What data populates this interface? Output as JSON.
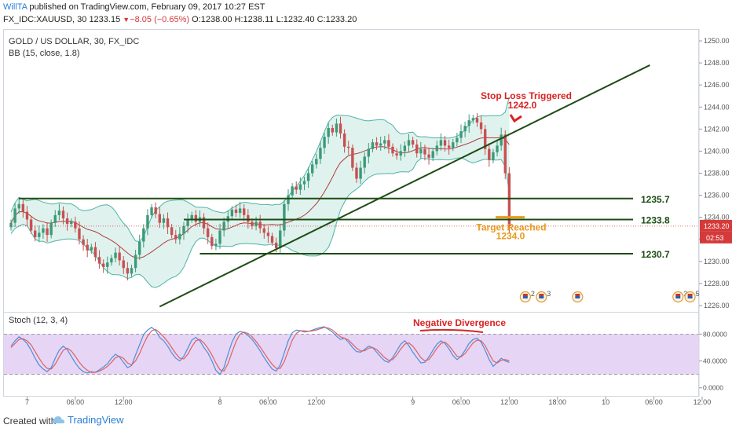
{
  "header": {
    "author": "WillTA",
    "published_text": "published on TradingView.com, February 09, 2017 10:27 EST",
    "symbol": "FX_IDC:XAUUSD, 30",
    "last": "1233.15",
    "change": "−8.05 (−0.65%)",
    "ohlc": {
      "o_label": "O:",
      "o": "1238.00",
      "h_label": "H:",
      "h": "1238.11",
      "l_label": "L:",
      "l": "1232.40",
      "c_label": "C:",
      "c": "1233.20"
    }
  },
  "legend": {
    "main": "GOLD / US DOLLAR, 30, FX_IDC",
    "bb": "BB (15, close, 1.8)",
    "stoch": "Stoch (12, 3, 4)"
  },
  "colors": {
    "up": "#3c9a78",
    "down": "#c85050",
    "bb_band": "#4fb3a6",
    "bb_fill": "#dff2ee",
    "bb_basis": "#b03c3c",
    "level_line": "#1e4d14",
    "stop_text": "#d92222",
    "target_text": "#e89a1c",
    "stoch_k": "#4a90d9",
    "stoch_d": "#e06060",
    "stoch_bg": "#e6d5f5",
    "price_tag": "#d43a3a"
  },
  "chart_data": [
    {
      "type": "line",
      "title": "GOLD / US DOLLAR, 30, FX_IDC",
      "indicator": "BB (15, close, 1.8)",
      "ylim": [
        1225.5,
        1251
      ],
      "y_ticks": [
        "1250.00",
        "1248.00",
        "1246.00",
        "1244.00",
        "1242.00",
        "1240.00",
        "1238.00",
        "1236.00",
        "1234.00",
        "1232.00",
        "1230.00",
        "1228.00",
        "1226.00"
      ],
      "x_ticks": [
        {
          "label": "7",
          "bar": 4
        },
        {
          "label": "06:00",
          "bar": 16
        },
        {
          "label": "12:00",
          "bar": 28
        },
        {
          "label": "8",
          "bar": 52
        },
        {
          "label": "06:00",
          "bar": 64
        },
        {
          "label": "12:00",
          "bar": 76
        },
        {
          "label": "9",
          "bar": 100
        },
        {
          "label": "06:00",
          "bar": 112
        },
        {
          "label": "12:00",
          "bar": 124
        },
        {
          "label": "18:00",
          "bar": 136
        },
        {
          "label": "10",
          "bar": 148
        },
        {
          "label": "06:00",
          "bar": 160
        },
        {
          "label": "12:00",
          "bar": 172
        }
      ],
      "closes": [
        1233.5,
        1234.8,
        1235.2,
        1234.5,
        1233.8,
        1232.8,
        1232.2,
        1232.6,
        1233.0,
        1232.4,
        1233.5,
        1234.2,
        1234.6,
        1233.9,
        1233.4,
        1233.6,
        1233.0,
        1232.0,
        1231.5,
        1231.0,
        1231.3,
        1230.4,
        1229.8,
        1229.5,
        1229.9,
        1230.3,
        1230.8,
        1230.1,
        1229.4,
        1228.9,
        1229.4,
        1230.6,
        1231.8,
        1233.0,
        1234.2,
        1234.9,
        1234.3,
        1233.5,
        1233.9,
        1233.1,
        1232.4,
        1232.0,
        1232.5,
        1233.2,
        1233.8,
        1234.2,
        1233.6,
        1234.0,
        1233.0,
        1232.2,
        1231.4,
        1231.6,
        1232.8,
        1233.6,
        1234.1,
        1234.7,
        1234.4,
        1234.8,
        1234.2,
        1233.6,
        1233.2,
        1233.6,
        1233.0,
        1232.6,
        1232.3,
        1231.7,
        1231.2,
        1232.8,
        1235.2,
        1236.0,
        1236.8,
        1236.5,
        1237.0,
        1237.3,
        1238.0,
        1238.8,
        1239.3,
        1240.3,
        1241.3,
        1242.1,
        1241.7,
        1242.5,
        1241.6,
        1240.4,
        1240.3,
        1238.5,
        1237.5,
        1238.5,
        1239.5,
        1240.2,
        1240.8,
        1240.5,
        1240.7,
        1241.0,
        1240.4,
        1239.8,
        1239.6,
        1240.0,
        1240.5,
        1241.0,
        1240.6,
        1239.8,
        1240.2,
        1239.7,
        1239.4,
        1240.0,
        1240.5,
        1241.0,
        1240.5,
        1240.3,
        1240.8,
        1241.2,
        1241.8,
        1242.3,
        1242.8,
        1243.0,
        1242.6,
        1242.0,
        1240.2,
        1239.2,
        1239.9,
        1240.5,
        1241.5,
        1238.0,
        1233.2
      ],
      "bb_period": 15,
      "bb_mult": 1.8,
      "levels": [
        {
          "label": "1235.7",
          "value": 1235.7,
          "bar_from": 2
        },
        {
          "label": "1233.8",
          "value": 1233.8,
          "bar_from": 43
        },
        {
          "label": "1230.7",
          "value": 1230.7,
          "bar_from": 47
        }
      ],
      "trendline": {
        "from": {
          "bar": 37,
          "value": 1225.9
        },
        "to": {
          "bar": 159,
          "value": 1247.8
        }
      },
      "annotations": {
        "stop_label": "Stop Loss Triggered",
        "stop_value": "1242.0",
        "target_label": "Target Reached",
        "target_value": "1234.0",
        "target_price": 1234.0,
        "last_price": 1233.2,
        "last_price_tag": "1233.20",
        "countdown_tag": "02:53"
      },
      "event_markers": [
        {
          "bar": 128,
          "text": "2"
        },
        {
          "bar": 132,
          "text": "3"
        },
        {
          "bar": 141,
          "text": ""
        },
        {
          "bar": 166,
          "text": "3"
        },
        {
          "bar": 169,
          "text": "5"
        }
      ]
    },
    {
      "type": "line",
      "title": "Stoch (12, 3, 4)",
      "ylim": [
        -12,
        112
      ],
      "y_ticks": [
        "80.0000",
        "40.0000",
        "0.0000"
      ],
      "band": [
        20,
        80
      ],
      "annotation": "Negative Divergence",
      "series": [
        {
          "key": "k",
          "values": [
            62,
            70,
            76,
            72,
            66,
            56,
            44,
            34,
            28,
            24,
            30,
            44,
            56,
            62,
            57,
            47,
            37,
            29,
            24,
            22,
            24,
            23,
            27,
            31,
            36,
            44,
            50,
            46,
            38,
            30,
            33,
            49,
            64,
            79,
            86,
            90,
            85,
            75,
            70,
            62,
            52,
            44,
            40,
            47,
            59,
            71,
            75,
            70,
            60,
            52,
            40,
            26,
            20,
            30,
            50,
            68,
            80,
            84,
            82,
            78,
            72,
            64,
            55,
            45,
            36,
            28,
            25,
            34,
            52,
            70,
            82,
            86,
            85,
            83,
            84,
            86,
            88,
            90,
            91,
            87,
            83,
            77,
            72,
            74,
            68,
            60,
            54,
            53,
            57,
            62,
            60,
            53,
            46,
            40,
            38,
            45,
            55,
            65,
            70,
            63,
            53,
            45,
            37,
            38,
            46,
            56,
            65,
            70,
            66,
            58,
            48,
            42,
            47,
            56,
            66,
            72,
            74,
            68,
            56,
            42,
            32,
            38,
            44,
            40,
            38
          ]
        },
        {
          "key": "d",
          "values": [
            60,
            66,
            72,
            73,
            70,
            64,
            54,
            44,
            35,
            29,
            28,
            35,
            46,
            56,
            59,
            55,
            47,
            38,
            31,
            26,
            23,
            23,
            25,
            28,
            32,
            38,
            45,
            47,
            44,
            37,
            34,
            40,
            51,
            65,
            77,
            85,
            87,
            82,
            76,
            69,
            60,
            51,
            44,
            43,
            50,
            61,
            70,
            72,
            67,
            59,
            49,
            37,
            27,
            25,
            36,
            53,
            69,
            80,
            83,
            81,
            76,
            69,
            61,
            52,
            43,
            35,
            29,
            29,
            39,
            55,
            71,
            81,
            85,
            85,
            84,
            85,
            86,
            88,
            90,
            89,
            86,
            81,
            76,
            74,
            71,
            65,
            59,
            55,
            55,
            59,
            60,
            57,
            51,
            45,
            41,
            42,
            49,
            58,
            65,
            67,
            62,
            54,
            45,
            40,
            42,
            50,
            59,
            66,
            68,
            63,
            55,
            47,
            46,
            51,
            59,
            67,
            71,
            70,
            63,
            51,
            40,
            37,
            41,
            42,
            40
          ]
        }
      ]
    }
  ],
  "footer": {
    "created_label": "Created with",
    "brand": "TradingView"
  }
}
